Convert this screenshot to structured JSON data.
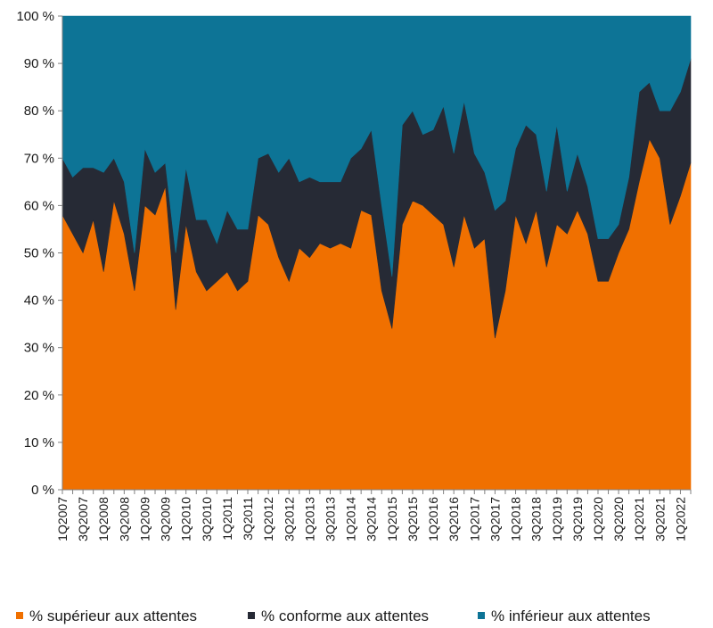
{
  "chart_data": {
    "type": "area",
    "stacked": true,
    "title": "",
    "xlabel": "",
    "ylabel": "",
    "ylim": [
      0,
      100
    ],
    "y_ticks": [
      "0 %",
      "10 %",
      "20 %",
      "30 %",
      "40 %",
      "50 %",
      "60 %",
      "70 %",
      "80 %",
      "90 %",
      "100 %"
    ],
    "x_tick_labels": [
      "1Q2007",
      "3Q2007",
      "1Q2008",
      "3Q2008",
      "1Q2009",
      "3Q2009",
      "1Q2010",
      "3Q2010",
      "1Q2011",
      "3Q2011",
      "1Q2012",
      "3Q2012",
      "1Q2013",
      "3Q2013",
      "1Q2014",
      "3Q2014",
      "1Q2015",
      "3Q2015",
      "1Q2016",
      "3Q2016",
      "1Q2017",
      "3Q2017",
      "1Q2018",
      "3Q2018",
      "1Q2019",
      "3Q2019",
      "1Q2020",
      "3Q2020",
      "1Q2021",
      "3Q2021",
      "1Q2022"
    ],
    "legend_position": "bottom",
    "series": [
      {
        "name": "% supérieur aux attentes",
        "color": "#f07000",
        "values": [
          58,
          54,
          50,
          57,
          46,
          61,
          54,
          42,
          60,
          58,
          64,
          38,
          56,
          46,
          42,
          44,
          46,
          42,
          44,
          58,
          56,
          49,
          44,
          51,
          49,
          52,
          51,
          52,
          51,
          59,
          58,
          42,
          34,
          56,
          61,
          60,
          58,
          56,
          47,
          58,
          51,
          53,
          32,
          42,
          58,
          52,
          59,
          47,
          56,
          54,
          59,
          54,
          44,
          44,
          50,
          55,
          65,
          74,
          70,
          56,
          62,
          69
        ]
      },
      {
        "name": "% conforme aux attentes",
        "color": "#262a35",
        "values": [
          12,
          12,
          18,
          11,
          21,
          9,
          11,
          8,
          12,
          9,
          5,
          12,
          12,
          11,
          15,
          8,
          13,
          13,
          11,
          12,
          15,
          18,
          26,
          14,
          17,
          13,
          14,
          13,
          19,
          13,
          18,
          18,
          11,
          21,
          19,
          15,
          18,
          25,
          24,
          24,
          20,
          14,
          27,
          19,
          14,
          25,
          16,
          16,
          21,
          9,
          12,
          10,
          9,
          9,
          6,
          11,
          19,
          12,
          10,
          24,
          22,
          22
        ]
      },
      {
        "name": "% inférieur aux attentes",
        "color": "#0d7496",
        "values": [
          30,
          34,
          32,
          32,
          33,
          30,
          35,
          50,
          28,
          33,
          31,
          50,
          32,
          43,
          43,
          48,
          41,
          45,
          45,
          30,
          29,
          33,
          30,
          35,
          34,
          35,
          35,
          35,
          30,
          28,
          24,
          40,
          55,
          23,
          20,
          25,
          24,
          19,
          29,
          18,
          29,
          33,
          41,
          39,
          28,
          23,
          25,
          37,
          23,
          37,
          29,
          36,
          47,
          47,
          44,
          34,
          16,
          14,
          20,
          20,
          16,
          9
        ]
      }
    ]
  }
}
